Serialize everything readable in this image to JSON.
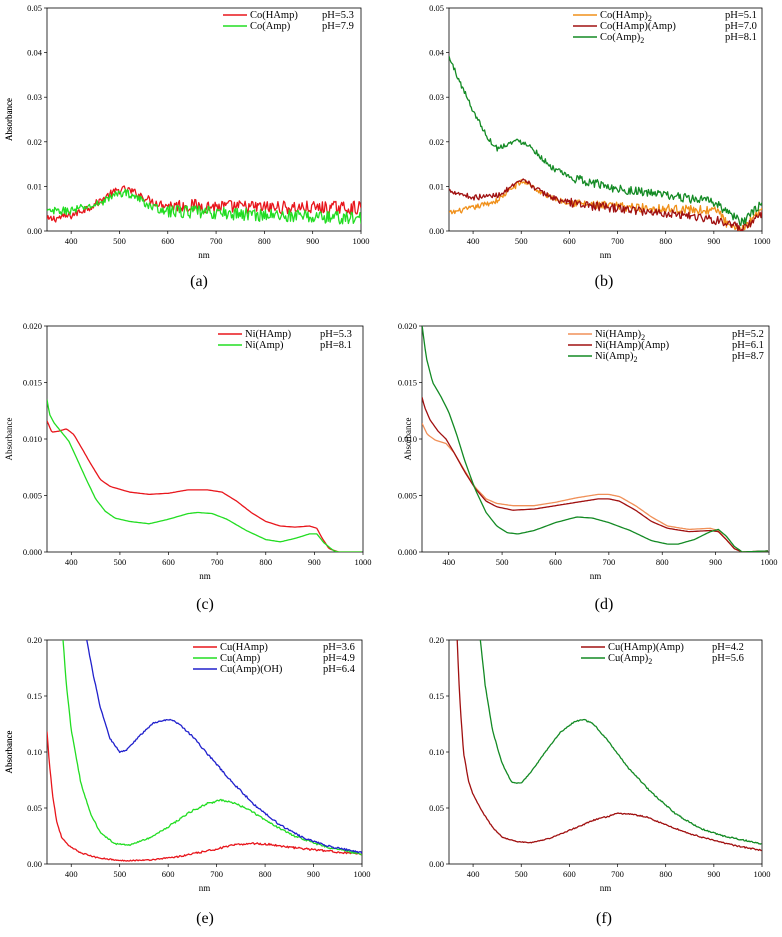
{
  "figure": {
    "description_panels": [
      "a",
      "b",
      "c",
      "d",
      "e",
      "f"
    ]
  },
  "chart_data": [
    {
      "id": "a",
      "type": "line",
      "panel_label": "(a)",
      "xlabel": "nm",
      "ylabel": "Absorbance",
      "xlim": [
        350,
        1000
      ],
      "ylim": [
        0,
        0.05
      ],
      "xticks": [
        400,
        500,
        600,
        700,
        800,
        900,
        1000
      ],
      "xtick_labels": [
        "400",
        "500",
        "600",
        "700",
        "800",
        "900",
        "1000"
      ],
      "yticks": [
        0,
        0.01,
        0.02,
        0.03,
        0.04,
        0.05
      ],
      "ytick_labels": [
        "0.00",
        "0.01",
        "0.02",
        "0.03",
        "0.04",
        "0.05"
      ],
      "legend_position": "top-right",
      "noise": 0.0012,
      "series": [
        {
          "name": "Co(HAmp) pH=5.3",
          "label": "Co(HAmp)",
          "label_sub": "",
          "ph": "pH=5.3",
          "color": "#e8161c",
          "x": [
            350,
            400,
            450,
            480,
            500,
            515,
            540,
            570,
            600,
            700,
            800,
            900,
            1000
          ],
          "y": [
            0.0025,
            0.0035,
            0.006,
            0.0082,
            0.0092,
            0.0093,
            0.0082,
            0.0065,
            0.0058,
            0.0055,
            0.0053,
            0.0052,
            0.0052
          ]
        },
        {
          "name": "Co(Amp) pH=7.9",
          "label": "Co(Amp)",
          "label_sub": "",
          "ph": "pH=7.9",
          "color": "#22dd22",
          "x": [
            350,
            400,
            450,
            480,
            500,
            515,
            540,
            570,
            600,
            700,
            800,
            900,
            1000
          ],
          "y": [
            0.0043,
            0.0046,
            0.0058,
            0.0075,
            0.0085,
            0.0086,
            0.0072,
            0.0052,
            0.0045,
            0.004,
            0.0036,
            0.0032,
            0.0028
          ]
        }
      ]
    },
    {
      "id": "b",
      "type": "line",
      "panel_label": "(b)",
      "xlabel": "nm",
      "ylabel": "Absorbance",
      "xlim": [
        350,
        1000
      ],
      "ylim": [
        0,
        0.05
      ],
      "xticks": [
        400,
        500,
        600,
        700,
        800,
        900,
        1000
      ],
      "xtick_labels": [
        "400",
        "500",
        "600",
        "700",
        "800",
        "900",
        "1000"
      ],
      "yticks": [
        0,
        0.01,
        0.02,
        0.03,
        0.04,
        0.05
      ],
      "ytick_labels": [
        "0.00",
        "0.01",
        "0.02",
        "0.03",
        "0.04",
        "0.05"
      ],
      "legend_position": "top-right",
      "noise": 0.0008,
      "series": [
        {
          "name": "Co(HAmp)2 pH=5.1",
          "label": "Co(HAmp)",
          "label_sub": "2",
          "ph": "pH=5.1",
          "color": "#f0901a",
          "x": [
            350,
            400,
            450,
            480,
            500,
            515,
            540,
            580,
            650,
            750,
            850,
            910,
            930,
            950,
            970,
            1000
          ],
          "y": [
            0.004,
            0.0052,
            0.0068,
            0.0095,
            0.011,
            0.0108,
            0.0085,
            0.0068,
            0.0058,
            0.0052,
            0.0048,
            0.0045,
            0.001,
            0.0,
            0.0015,
            0.0055
          ]
        },
        {
          "name": "Co(HAmp)(Amp) pH=7.0",
          "label": "Co(HAmp)(Amp)",
          "label_sub": "",
          "ph": "pH=7.0",
          "color": "#a01010",
          "x": [
            350,
            400,
            450,
            480,
            500,
            515,
            540,
            580,
            650,
            750,
            850,
            900,
            930,
            960,
            980,
            1000
          ],
          "y": [
            0.0092,
            0.0075,
            0.008,
            0.0098,
            0.0112,
            0.0108,
            0.0088,
            0.0068,
            0.0056,
            0.0045,
            0.0035,
            0.0025,
            0.0018,
            0.0002,
            0.002,
            0.0035
          ]
        },
        {
          "name": "Co(Amp)2 pH=8.1",
          "label": "Co(Amp)",
          "label_sub": "2",
          "ph": "pH=8.1",
          "color": "#138a24",
          "x": [
            350,
            370,
            400,
            430,
            450,
            470,
            490,
            510,
            530,
            560,
            600,
            700,
            800,
            900,
            930,
            960,
            980,
            1000
          ],
          "y": [
            0.039,
            0.034,
            0.027,
            0.021,
            0.0185,
            0.0195,
            0.0202,
            0.0198,
            0.0178,
            0.0145,
            0.012,
            0.0095,
            0.008,
            0.0065,
            0.0042,
            0.0018,
            0.004,
            0.0062
          ]
        }
      ]
    },
    {
      "id": "c",
      "type": "line",
      "panel_label": "(c)",
      "xlabel": "nm",
      "ylabel": "Absorbance",
      "xlim": [
        350,
        1000
      ],
      "ylim": [
        0,
        0.02
      ],
      "xticks": [
        400,
        500,
        600,
        700,
        800,
        900,
        1000
      ],
      "xtick_labels": [
        "400",
        "500",
        "600",
        "700",
        "800",
        "900",
        "1000"
      ],
      "yticks": [
        0,
        0.005,
        0.01,
        0.015,
        0.02
      ],
      "ytick_labels": [
        "0.000",
        "0.005",
        "0.010",
        "0.015",
        "0.020"
      ],
      "legend_position": "top-right",
      "noise": 0,
      "series": [
        {
          "name": "Ni(HAmp) pH=5.3",
          "label": "Ni(HAmp)",
          "label_sub": "",
          "ph": "pH=5.3",
          "color": "#e8161c",
          "x": [
            350,
            360,
            375,
            390,
            405,
            420,
            440,
            460,
            480,
            520,
            560,
            600,
            640,
            680,
            710,
            740,
            770,
            800,
            830,
            860,
            890,
            905,
            915,
            930,
            950,
            1000
          ],
          "y": [
            0.0116,
            0.0106,
            0.0107,
            0.0109,
            0.0104,
            0.0093,
            0.0078,
            0.0064,
            0.0058,
            0.0053,
            0.0051,
            0.0052,
            0.0055,
            0.0055,
            0.0053,
            0.0045,
            0.0035,
            0.0027,
            0.0023,
            0.0022,
            0.0023,
            0.0021,
            0.0013,
            0.0003,
            0.0,
            0.0
          ]
        },
        {
          "name": "Ni(Amp) pH=8.1",
          "label": "Ni(Amp)",
          "label_sub": "",
          "ph": "pH=8.1",
          "color": "#22dd22",
          "x": [
            350,
            355,
            365,
            380,
            395,
            410,
            430,
            450,
            470,
            490,
            520,
            560,
            600,
            640,
            660,
            690,
            720,
            760,
            800,
            830,
            860,
            890,
            905,
            920,
            940,
            950,
            1000
          ],
          "y": [
            0.0135,
            0.0122,
            0.0114,
            0.0106,
            0.0098,
            0.0084,
            0.0065,
            0.0047,
            0.0036,
            0.003,
            0.0027,
            0.0025,
            0.0029,
            0.0034,
            0.0035,
            0.0034,
            0.0029,
            0.0019,
            0.0011,
            0.0009,
            0.0012,
            0.0016,
            0.0016,
            0.0008,
            0.0001,
            0.0,
            0.0
          ]
        }
      ]
    },
    {
      "id": "d",
      "type": "line",
      "panel_label": "(d)",
      "xlabel": "nm",
      "ylabel": "Absorbance",
      "xlim": [
        350,
        1000
      ],
      "ylim": [
        0,
        0.02
      ],
      "xticks": [
        400,
        500,
        600,
        700,
        800,
        900,
        1000
      ],
      "xtick_labels": [
        "400",
        "500",
        "600",
        "700",
        "800",
        "900",
        "1000"
      ],
      "yticks": [
        0,
        0.005,
        0.01,
        0.015,
        0.02
      ],
      "ytick_labels": [
        "0.000",
        "0.005",
        "0.010",
        "0.015",
        "0.020"
      ],
      "legend_position": "top-right",
      "noise": 0,
      "series": [
        {
          "name": "Ni(HAmp)2 pH=5.2",
          "label": "Ni(HAmp)",
          "label_sub": "2",
          "ph": "pH=5.2",
          "color": "#f09058",
          "x": [
            350,
            360,
            375,
            395,
            410,
            430,
            450,
            470,
            490,
            520,
            560,
            600,
            640,
            680,
            700,
            720,
            750,
            780,
            810,
            850,
            890,
            905,
            920,
            935,
            950,
            1000
          ],
          "y": [
            0.0114,
            0.0104,
            0.0099,
            0.0096,
            0.0088,
            0.0072,
            0.0057,
            0.0047,
            0.0043,
            0.0041,
            0.0041,
            0.0044,
            0.0048,
            0.0051,
            0.0051,
            0.0049,
            0.0041,
            0.0031,
            0.0023,
            0.002,
            0.0021,
            0.0019,
            0.0011,
            0.0003,
            0.0,
            0.0001
          ]
        },
        {
          "name": "Ni(HAmp)(Amp) pH=6.1",
          "label": "Ni(HAmp)(Amp)",
          "label_sub": "",
          "ph": "pH=6.1",
          "color": "#a01010",
          "x": [
            350,
            355,
            365,
            380,
            395,
            410,
            430,
            450,
            470,
            490,
            520,
            560,
            600,
            640,
            680,
            700,
            720,
            750,
            780,
            810,
            850,
            890,
            905,
            920,
            935,
            950,
            1000
          ],
          "y": [
            0.0137,
            0.0128,
            0.0117,
            0.0107,
            0.01,
            0.0088,
            0.0071,
            0.0056,
            0.0045,
            0.004,
            0.0037,
            0.0038,
            0.0041,
            0.0044,
            0.0047,
            0.0047,
            0.0045,
            0.0037,
            0.0027,
            0.0021,
            0.0018,
            0.0019,
            0.0018,
            0.0011,
            0.0003,
            0.0,
            0.0001
          ]
        },
        {
          "name": "Ni(Amp)2 pH=8.7",
          "label": "Ni(Amp)",
          "label_sub": "2",
          "ph": "pH=8.7",
          "color": "#138a24",
          "x": [
            350,
            358,
            370,
            385,
            400,
            415,
            430,
            450,
            470,
            490,
            510,
            530,
            560,
            600,
            640,
            670,
            700,
            740,
            780,
            810,
            830,
            860,
            890,
            905,
            920,
            935,
            950,
            1000
          ],
          "y": [
            0.0201,
            0.0172,
            0.015,
            0.0138,
            0.0124,
            0.0104,
            0.0081,
            0.0055,
            0.0035,
            0.0023,
            0.0017,
            0.0016,
            0.0019,
            0.0026,
            0.0031,
            0.003,
            0.0026,
            0.0019,
            0.001,
            0.0007,
            0.0007,
            0.0011,
            0.0018,
            0.002,
            0.0014,
            0.0005,
            0.0,
            0.0001
          ]
        }
      ]
    },
    {
      "id": "e",
      "type": "line",
      "panel_label": "(e)",
      "xlabel": "nm",
      "ylabel": "Absorbance",
      "xlim": [
        350,
        1000
      ],
      "ylim": [
        0,
        0.2
      ],
      "xticks": [
        400,
        500,
        600,
        700,
        800,
        900,
        1000
      ],
      "xtick_labels": [
        "400",
        "500",
        "600",
        "700",
        "800",
        "900",
        "1000"
      ],
      "yticks": [
        0,
        0.05,
        0.1,
        0.15,
        0.2
      ],
      "ytick_labels": [
        "0.00",
        "0.05",
        "0.10",
        "0.15",
        "0.20"
      ],
      "legend_position": "top-right",
      "noise": 0.0007,
      "series": [
        {
          "name": "Cu(HAmp) pH=3.6",
          "label": "Cu(HAmp)",
          "label_sub": "",
          "ph": "pH=3.6",
          "color": "#e8161c",
          "x": [
            350,
            355,
            362,
            370,
            380,
            395,
            420,
            450,
            500,
            560,
            620,
            680,
            730,
            770,
            810,
            860,
            920,
            1000
          ],
          "y": [
            0.118,
            0.09,
            0.06,
            0.038,
            0.024,
            0.016,
            0.01,
            0.006,
            0.003,
            0.0035,
            0.0065,
            0.0115,
            0.0165,
            0.0185,
            0.0175,
            0.0145,
            0.012,
            0.0085
          ]
        },
        {
          "name": "Cu(Amp) pH=4.9",
          "label": "Cu(Amp)",
          "label_sub": "",
          "ph": "pH=4.9",
          "color": "#22dd22",
          "x": [
            383,
            390,
            400,
            420,
            440,
            460,
            490,
            520,
            560,
            600,
            640,
            680,
            710,
            740,
            780,
            820,
            860,
            920,
            1000
          ],
          "y": [
            0.2,
            0.16,
            0.12,
            0.072,
            0.045,
            0.028,
            0.018,
            0.017,
            0.023,
            0.033,
            0.045,
            0.054,
            0.057,
            0.054,
            0.045,
            0.034,
            0.025,
            0.016,
            0.0085
          ]
        },
        {
          "name": "Cu(Amp)(OH) pH=6.4",
          "label": "Cu(Amp)(OH)",
          "label_sub": "",
          "ph": "pH=6.4",
          "color": "#2020cc",
          "x": [
            432,
            445,
            460,
            480,
            500,
            515,
            540,
            570,
            600,
            620,
            650,
            690,
            730,
            780,
            830,
            880,
            940,
            1000
          ],
          "y": [
            0.2,
            0.17,
            0.14,
            0.112,
            0.1,
            0.102,
            0.114,
            0.126,
            0.129,
            0.126,
            0.114,
            0.094,
            0.074,
            0.052,
            0.035,
            0.023,
            0.015,
            0.01
          ]
        }
      ]
    },
    {
      "id": "f",
      "type": "line",
      "panel_label": "(f)",
      "xlabel": "nm",
      "ylabel": "Absorbance",
      "xlim": [
        350,
        1000
      ],
      "ylim": [
        0,
        0.2
      ],
      "xticks": [
        400,
        500,
        600,
        700,
        800,
        900,
        1000
      ],
      "xtick_labels": [
        "400",
        "500",
        "600",
        "700",
        "800",
        "900",
        "1000"
      ],
      "yticks": [
        0,
        0.05,
        0.1,
        0.15,
        0.2
      ],
      "ytick_labels": [
        "0.00",
        "0.05",
        "0.10",
        "0.15",
        "0.20"
      ],
      "legend_position": "top-right",
      "noise": 0.0005,
      "series": [
        {
          "name": "Cu(HAmp)(Amp) pH=4.2",
          "label": "Cu(HAmp)(Amp)",
          "label_sub": "",
          "ph": "pH=4.2",
          "color": "#a01010",
          "x": [
            367,
            372,
            380,
            390,
            400,
            420,
            440,
            460,
            490,
            520,
            560,
            600,
            650,
            700,
            720,
            760,
            800,
            850,
            900,
            950,
            1000
          ],
          "y": [
            0.2,
            0.15,
            0.1,
            0.075,
            0.062,
            0.046,
            0.033,
            0.024,
            0.02,
            0.019,
            0.023,
            0.03,
            0.039,
            0.045,
            0.045,
            0.042,
            0.035,
            0.027,
            0.021,
            0.016,
            0.012
          ]
        },
        {
          "name": "Cu(Amp)2 pH=5.6",
          "label": "Cu(Amp)",
          "label_sub": "2",
          "ph": "pH=5.6",
          "color": "#138a24",
          "x": [
            415,
            425,
            440,
            460,
            480,
            500,
            520,
            550,
            580,
            610,
            630,
            650,
            680,
            720,
            770,
            820,
            870,
            920,
            1000
          ],
          "y": [
            0.2,
            0.16,
            0.12,
            0.09,
            0.073,
            0.072,
            0.082,
            0.1,
            0.117,
            0.127,
            0.129,
            0.125,
            0.11,
            0.087,
            0.064,
            0.045,
            0.032,
            0.025,
            0.018
          ]
        }
      ]
    }
  ]
}
